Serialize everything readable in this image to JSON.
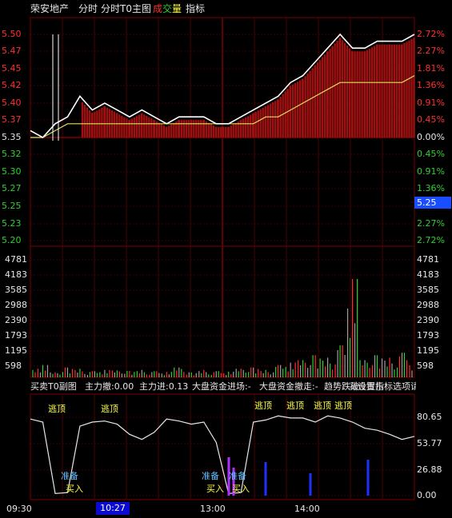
{
  "header": {
    "stock_name": "荣安地产",
    "tab_intraday": "分时",
    "tab_t0_main": "分时T0主图",
    "legend_cheng": "成",
    "legend_jiao": "交",
    "legend_liang": "量",
    "tab_indicator": "指标"
  },
  "price_axis_left": [
    "5.50",
    "5.47",
    "5.45",
    "5.42",
    "5.40",
    "5.37",
    "5.35",
    "5.32",
    "5.30",
    "5.27",
    "5.25",
    "5.23",
    "5.20"
  ],
  "pct_axis_right": [
    "2.72%",
    "2.27%",
    "1.81%",
    "1.36%",
    "0.91%",
    "0.45%",
    "0.00%",
    "0.45%",
    "0.91%",
    "1.36%",
    "1.81%",
    "2.27%",
    "2.72%"
  ],
  "current_price_tag": "5.25",
  "volume_axis_left": [
    "4781",
    "4183",
    "3585",
    "2988",
    "2390",
    "1793",
    "1195",
    "598"
  ],
  "volume_axis_right": [
    "4781",
    "4183",
    "3585",
    "2988",
    "2390",
    "1793",
    "1195",
    "598"
  ],
  "sub_indicator": {
    "title": "买卖T0副图",
    "main_withdraw": "主力撤:0.00",
    "main_enter": "主力进:0.13",
    "market_in": "大盘资金进场:-",
    "market_out": "大盘资金撤走:-",
    "trend_label": "趋势跌破",
    "overlap_text": "减仓提示",
    "tail_text": "设置指标选项请",
    "axis": [
      "80.65",
      "53.77",
      "26.88",
      "0.00"
    ],
    "signals": {
      "escape_top": "逃顶",
      "prepare": "准备",
      "buy": "买入"
    }
  },
  "time_axis": {
    "open": "09:30",
    "cursor": "10:27",
    "noon": "13:00",
    "afternoon": "14:00"
  },
  "colors": {
    "background": "#000000",
    "grid": "#7a0000",
    "up_red": "#ff3030",
    "down_green": "#30d030",
    "price_line": "#ffffff",
    "avg_line": "#e0e060",
    "fill_red": "#a01010",
    "cursor_blue": "#0a0ad0",
    "purple": "#b030ff",
    "yellow_text": "#ffff40",
    "cyan_text": "#60c0ff"
  },
  "chart_data": [
    {
      "type": "line",
      "title": "分时T0主图",
      "series": [
        {
          "values": [
            5.36,
            5.35,
            5.37,
            5.38,
            5.41,
            5.39,
            5.4,
            5.39,
            5.38,
            5.39,
            5.38,
            5.37,
            5.38,
            5.38,
            5.38,
            5.37,
            5.37,
            5.38,
            5.39,
            5.4,
            5.41,
            5.43,
            5.44,
            5.46,
            5.48,
            5.5,
            5.48,
            5.48,
            5.49,
            5.49,
            5.49,
            5.5
          ]
        },
        {
          "values": [
            5.35,
            5.35,
            5.36,
            5.37,
            5.37,
            5.37,
            5.37,
            5.37,
            5.37,
            5.37,
            5.37,
            5.37,
            5.37,
            5.37,
            5.37,
            5.37,
            5.37,
            5.37,
            5.37,
            5.38,
            5.38,
            5.39,
            5.4,
            5.41,
            5.42,
            5.43,
            5.43,
            5.43,
            5.43,
            5.43,
            5.43,
            5.44
          ]
        }
      ],
      "ylim": [
        5.2,
        5.51
      ]
    },
    {
      "type": "bar",
      "title": "成交量",
      "values": [
        300,
        500,
        200,
        400,
        350,
        250,
        300,
        280,
        260,
        300,
        250,
        220,
        400,
        200,
        300,
        250,
        230,
        350,
        400,
        300,
        500,
        600,
        700,
        900,
        800,
        1300,
        4000,
        700,
        900,
        800,
        1000,
        700
      ],
      "ylim": [
        0,
        4781
      ]
    },
    {
      "type": "line",
      "title": "买卖T0副图",
      "series": [
        {
          "values": [
            75,
            72,
            2,
            3,
            68,
            72,
            73,
            70,
            60,
            55,
            62,
            75,
            73,
            70,
            72,
            52,
            2,
            3,
            72,
            74,
            78,
            76,
            76,
            72,
            78,
            76,
            72,
            66,
            64,
            60,
            55,
            58
          ]
        }
      ],
      "ylim": [
        0,
        90
      ]
    }
  ]
}
